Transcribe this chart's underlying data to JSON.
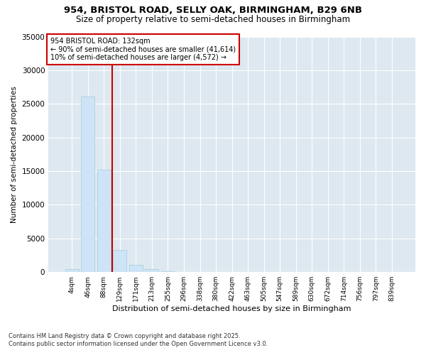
{
  "title_line1": "954, BRISTOL ROAD, SELLY OAK, BIRMINGHAM, B29 6NB",
  "title_line2": "Size of property relative to semi-detached houses in Birmingham",
  "xlabel": "Distribution of semi-detached houses by size in Birmingham",
  "ylabel": "Number of semi-detached properties",
  "categories": [
    "4sqm",
    "46sqm",
    "88sqm",
    "129sqm",
    "171sqm",
    "213sqm",
    "255sqm",
    "296sqm",
    "338sqm",
    "380sqm",
    "422sqm",
    "463sqm",
    "505sqm",
    "547sqm",
    "589sqm",
    "630sqm",
    "672sqm",
    "714sqm",
    "756sqm",
    "797sqm",
    "839sqm"
  ],
  "values": [
    400,
    26100,
    15200,
    3300,
    1050,
    450,
    120,
    40,
    0,
    0,
    0,
    0,
    0,
    0,
    0,
    0,
    0,
    0,
    0,
    0,
    0
  ],
  "bar_color": "#cce4f5",
  "bar_edge_color": "#a8cce0",
  "vline_x": 2.5,
  "vline_color": "#cc0000",
  "annotation_title": "954 BRISTOL ROAD: 132sqm",
  "annotation_line1": "← 90% of semi-detached houses are smaller (41,614)",
  "annotation_line2": "10% of semi-detached houses are larger (4,572) →",
  "annotation_box_color": "#cc0000",
  "ylim": [
    0,
    35000
  ],
  "yticks": [
    0,
    5000,
    10000,
    15000,
    20000,
    25000,
    30000,
    35000
  ],
  "footnote1": "Contains HM Land Registry data © Crown copyright and database right 2025.",
  "footnote2": "Contains public sector information licensed under the Open Government Licence v3.0.",
  "bg_color": "#ffffff",
  "plot_bg_color": "#dde8f0"
}
